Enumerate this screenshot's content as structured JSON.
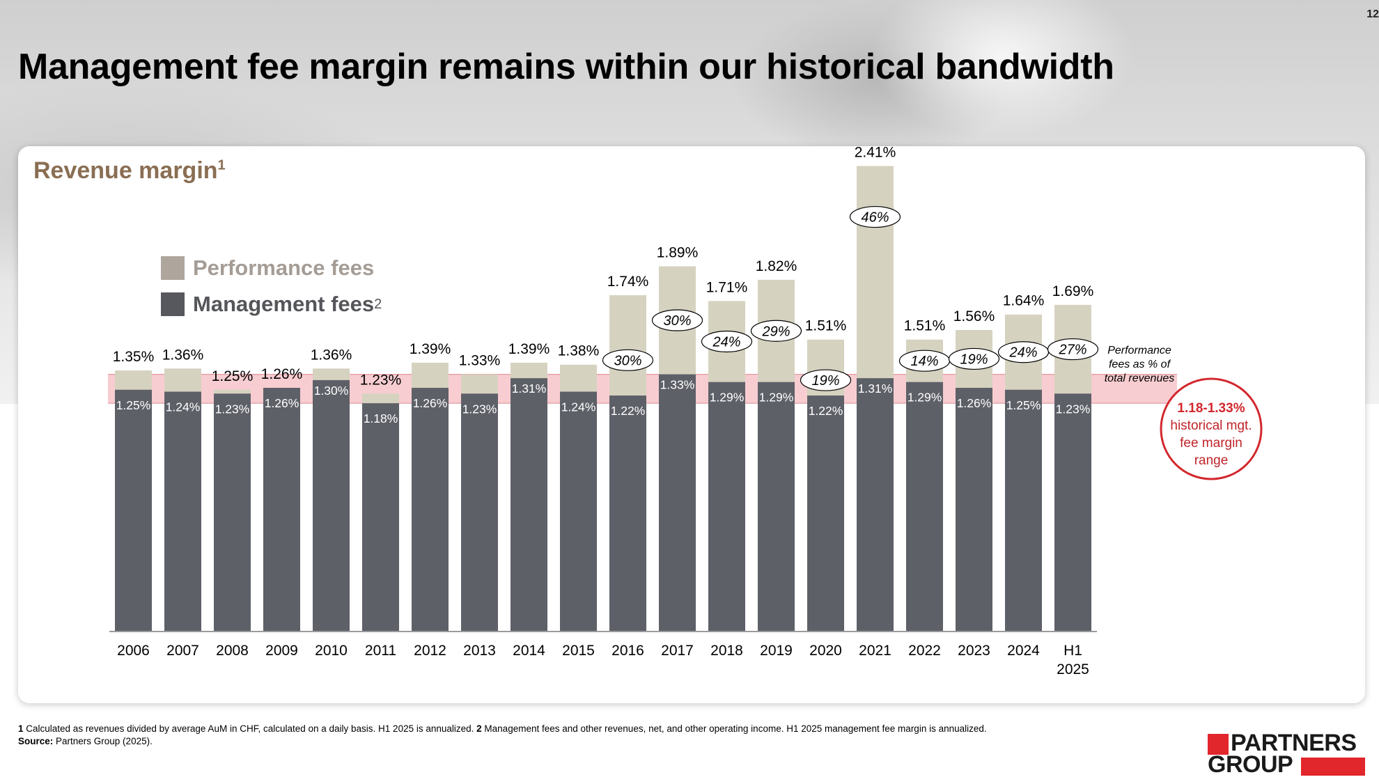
{
  "page": {
    "number": "12",
    "title": "Management fee margin remains within our historical bandwidth"
  },
  "section": {
    "title": "Revenue margin",
    "title_sup": "1"
  },
  "legend": {
    "performance": "Performance fees",
    "management": "Management fees",
    "management_sup": "2"
  },
  "annotations": {
    "perf_share_label": [
      "Performance",
      "fees as % of",
      "total revenues"
    ],
    "range_label": [
      "1.18-1.33%",
      "historical mgt.",
      "fee margin",
      "range"
    ]
  },
  "colors": {
    "management": "#5e6068",
    "performance": "#d6d2c0",
    "band": "#f7cdd1",
    "band_line": "#e39aa0",
    "circle": "#d2272d",
    "axis": "#9a9a9a",
    "logo_red": "#e1262c"
  },
  "chart_data": {
    "type": "bar",
    "stacked": true,
    "categories": [
      "2006",
      "2007",
      "2008",
      "2009",
      "2010",
      "2011",
      "2012",
      "2013",
      "2014",
      "2015",
      "2016",
      "2017",
      "2018",
      "2019",
      "2020",
      "2021",
      "2022",
      "2023",
      "2024",
      "H1 2025"
    ],
    "series": [
      {
        "name": "Management fees",
        "values": [
          1.25,
          1.24,
          1.23,
          1.26,
          1.3,
          1.18,
          1.26,
          1.23,
          1.31,
          1.24,
          1.22,
          1.33,
          1.29,
          1.29,
          1.22,
          1.31,
          1.29,
          1.26,
          1.25,
          1.23
        ]
      },
      {
        "name": "Performance fees",
        "values": [
          0.1,
          0.12,
          0.02,
          0.0,
          0.06,
          0.05,
          0.13,
          0.1,
          0.08,
          0.14,
          0.52,
          0.56,
          0.42,
          0.53,
          0.29,
          1.1,
          0.22,
          0.3,
          0.39,
          0.46
        ]
      }
    ],
    "mgmt_labels": [
      "1.25%",
      "1.24%",
      "1.23%",
      "1.26%",
      "1.30%",
      "1.18%",
      "1.26%",
      "1.23%",
      "1.31%",
      "1.24%",
      "1.22%",
      "1.33%",
      "1.29%",
      "1.29%",
      "1.22%",
      "1.31%",
      "1.29%",
      "1.26%",
      "1.25%",
      "1.23%"
    ],
    "total_labels": [
      "1.35%",
      "1.36%",
      "1.25%",
      "1.26%",
      "1.36%",
      "1.23%",
      "1.39%",
      "1.33%",
      "1.39%",
      "1.38%",
      "1.74%",
      "1.89%",
      "1.71%",
      "1.82%",
      "1.51%",
      "2.41%",
      "1.51%",
      "1.56%",
      "1.64%",
      "1.69%"
    ],
    "perf_share_labels": [
      null,
      null,
      null,
      null,
      null,
      null,
      null,
      null,
      null,
      null,
      "30%",
      "30%",
      "24%",
      "29%",
      "19%",
      "46%",
      "14%",
      "19%",
      "24%",
      "27%"
    ],
    "historical_range": [
      1.18,
      1.33
    ],
    "ylim": [
      0,
      2.6
    ],
    "unit": "%"
  },
  "footnotes": {
    "n1_marker": "1",
    "n1_text": " Calculated as revenues divided by average AuM in CHF, calculated on a daily basis. H1 2025 is annualized. ",
    "n2_marker": "2",
    "n2_text": " Management fees and other revenues, net, and other operating income. H1 2025 management fee margin is annualized.",
    "source_label": "Source:",
    "source_text": " Partners Group (2025)."
  },
  "logo": {
    "line1": "PARTNERS",
    "line2": "GROUP"
  }
}
